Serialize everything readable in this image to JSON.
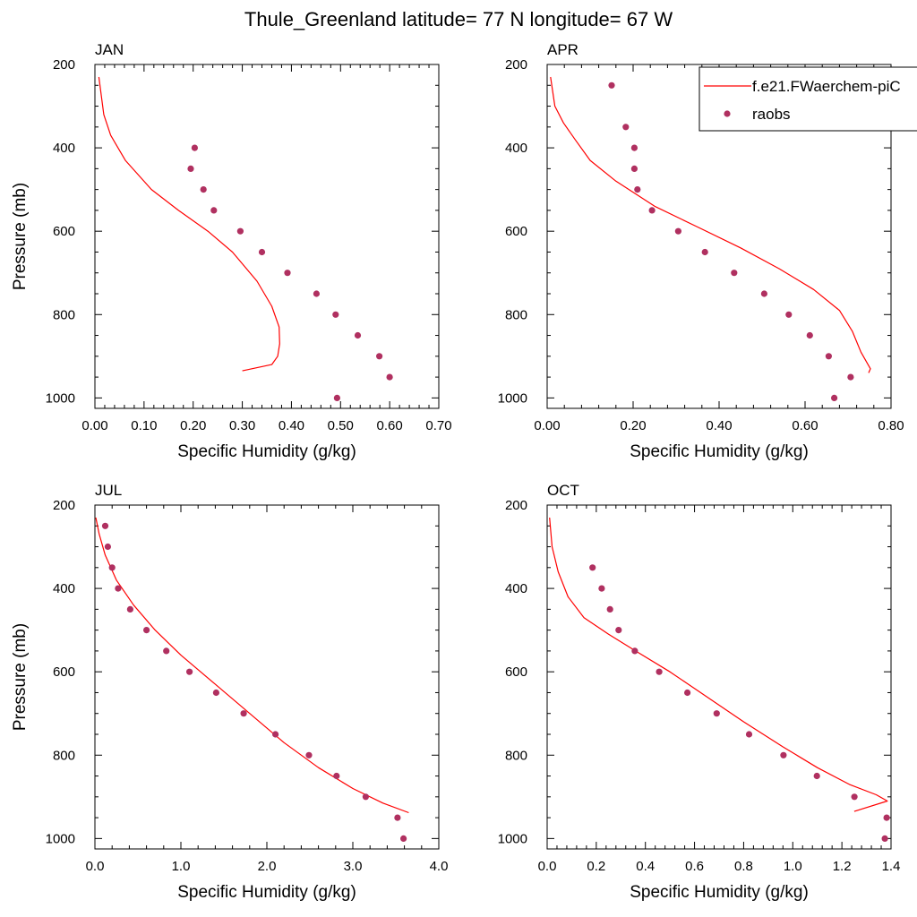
{
  "title": "Thule_Greenland  latitude= 77 N longitude= 67 W",
  "legend_labels": {
    "model": "f.e21.FWaerchem-piC",
    "obs": "raobs"
  },
  "colors": {
    "model": "#ff0000",
    "obs": "#b03060",
    "axis": "#000000"
  },
  "chart_data": [
    {
      "type": "scatter",
      "panel": "JAN",
      "xlabel": "Specific Humidity (g/kg)",
      "ylabel": "Pressure (mb)",
      "xlim": [
        0,
        0.7
      ],
      "ylim": [
        200,
        1025
      ],
      "y_reversed": true,
      "xticks": [
        "0.00",
        "0.10",
        "0.20",
        "0.30",
        "0.40",
        "0.50",
        "0.60",
        "0.70"
      ],
      "xtick_values": [
        0,
        0.1,
        0.2,
        0.3,
        0.4,
        0.5,
        0.6,
        0.7
      ],
      "yticks": [
        "200",
        "400",
        "600",
        "800",
        "1000"
      ],
      "ytick_values": [
        200,
        400,
        600,
        800,
        1000
      ],
      "legend": false,
      "series": [
        {
          "name": "f.e21.FWaerchem-piC",
          "kind": "line",
          "x": [
            0.008,
            0.018,
            0.032,
            0.062,
            0.115,
            0.17,
            0.23,
            0.28,
            0.33,
            0.36,
            0.375,
            0.376,
            0.372,
            0.36,
            0.3
          ],
          "y": [
            230,
            320,
            370,
            430,
            500,
            550,
            600,
            650,
            720,
            780,
            830,
            870,
            900,
            920,
            935
          ]
        },
        {
          "name": "raobs",
          "kind": "scatter",
          "x": [
            0.203,
            0.195,
            0.221,
            0.242,
            0.296,
            0.34,
            0.392,
            0.451,
            0.49,
            0.535,
            0.579,
            0.6,
            0.493
          ],
          "y": [
            400,
            450,
            500,
            550,
            600,
            650,
            700,
            750,
            800,
            850,
            900,
            950,
            1000
          ]
        }
      ]
    },
    {
      "type": "scatter",
      "panel": "APR",
      "xlabel": "Specific Humidity (g/kg)",
      "ylabel": "",
      "xlim": [
        0,
        0.8
      ],
      "ylim": [
        200,
        1025
      ],
      "y_reversed": true,
      "xticks": [
        "0.00",
        "0.20",
        "0.40",
        "0.60",
        "0.80"
      ],
      "xtick_values": [
        0,
        0.2,
        0.4,
        0.6,
        0.8
      ],
      "yticks": [
        "200",
        "400",
        "600",
        "800",
        "1000"
      ],
      "ytick_values": [
        200,
        400,
        600,
        800,
        1000
      ],
      "legend": true,
      "series": [
        {
          "name": "f.e21.FWaerchem-piC",
          "kind": "line",
          "x": [
            0.008,
            0.018,
            0.038,
            0.065,
            0.1,
            0.16,
            0.25,
            0.35,
            0.45,
            0.54,
            0.62,
            0.68,
            0.71,
            0.73,
            0.752,
            0.748
          ],
          "y": [
            230,
            300,
            340,
            380,
            430,
            480,
            540,
            590,
            640,
            690,
            740,
            790,
            840,
            890,
            930,
            940
          ]
        },
        {
          "name": "raobs",
          "kind": "scatter",
          "x": [
            0.15,
            0.183,
            0.203,
            0.203,
            0.21,
            0.244,
            0.305,
            0.367,
            0.435,
            0.505,
            0.562,
            0.611,
            0.655,
            0.706,
            0.668
          ],
          "y": [
            250,
            350,
            400,
            450,
            500,
            550,
            600,
            650,
            700,
            750,
            800,
            850,
            900,
            950,
            1000
          ]
        }
      ]
    },
    {
      "type": "scatter",
      "panel": "JUL",
      "xlabel": "Specific Humidity (g/kg)",
      "ylabel": "Pressure (mb)",
      "xlim": [
        0,
        4.0
      ],
      "ylim": [
        200,
        1025
      ],
      "y_reversed": true,
      "xticks": [
        "0.0",
        "1.0",
        "2.0",
        "3.0",
        "4.0"
      ],
      "xtick_values": [
        0,
        1,
        2,
        3,
        4
      ],
      "yticks": [
        "200",
        "400",
        "600",
        "800",
        "1000"
      ],
      "ytick_values": [
        200,
        400,
        600,
        800,
        1000
      ],
      "legend": false,
      "series": [
        {
          "name": "f.e21.FWaerchem-piC",
          "kind": "line",
          "x": [
            0.01,
            0.05,
            0.12,
            0.25,
            0.45,
            0.7,
            1.0,
            1.4,
            1.8,
            2.2,
            2.6,
            3.0,
            3.35,
            3.65
          ],
          "y": [
            230,
            270,
            320,
            380,
            440,
            500,
            560,
            630,
            700,
            770,
            830,
            880,
            915,
            938
          ]
        },
        {
          "name": "raobs",
          "kind": "scatter",
          "x": [
            0.12,
            0.15,
            0.2,
            0.27,
            0.41,
            0.6,
            0.83,
            1.1,
            1.41,
            1.73,
            2.1,
            2.49,
            2.81,
            3.15,
            3.52,
            3.59
          ],
          "y": [
            250,
            300,
            350,
            400,
            450,
            500,
            550,
            600,
            650,
            700,
            750,
            800,
            850,
            900,
            950,
            1000
          ]
        }
      ]
    },
    {
      "type": "scatter",
      "panel": "OCT",
      "xlabel": "Specific Humidity (g/kg)",
      "ylabel": "",
      "xlim": [
        0,
        1.4
      ],
      "ylim": [
        200,
        1025
      ],
      "y_reversed": true,
      "xticks": [
        "0.0",
        "0.2",
        "0.4",
        "0.6",
        "0.8",
        "1.0",
        "1.2",
        "1.4"
      ],
      "xtick_values": [
        0,
        0.2,
        0.4,
        0.6,
        0.8,
        1.0,
        1.2,
        1.4
      ],
      "yticks": [
        "200",
        "400",
        "600",
        "800",
        "1000"
      ],
      "ytick_values": [
        200,
        400,
        600,
        800,
        1000
      ],
      "legend": false,
      "series": [
        {
          "name": "f.e21.FWaerchem-piC",
          "kind": "line",
          "x": [
            0.01,
            0.02,
            0.045,
            0.085,
            0.15,
            0.25,
            0.36,
            0.5,
            0.65,
            0.8,
            0.96,
            1.1,
            1.23,
            1.34,
            1.385,
            1.25
          ],
          "y": [
            230,
            300,
            360,
            420,
            470,
            510,
            550,
            600,
            660,
            720,
            780,
            830,
            870,
            895,
            910,
            935
          ]
        },
        {
          "name": "raobs",
          "kind": "scatter",
          "x": [
            0.185,
            0.222,
            0.256,
            0.291,
            0.357,
            0.456,
            0.571,
            0.69,
            0.822,
            0.962,
            1.098,
            1.251,
            1.382,
            1.375
          ],
          "y": [
            350,
            400,
            450,
            500,
            550,
            600,
            650,
            700,
            750,
            800,
            850,
            900,
            950,
            1000
          ]
        }
      ]
    }
  ]
}
